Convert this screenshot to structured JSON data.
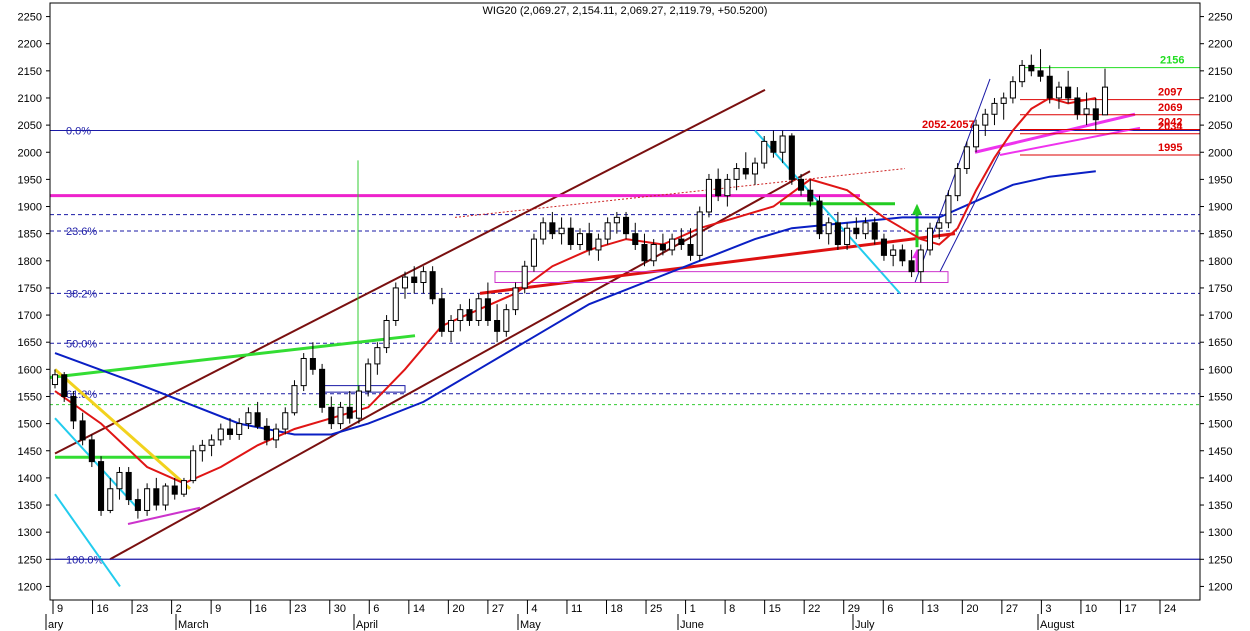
{
  "chart_data": {
    "type": "candlestick",
    "title": "WIG20 (2,069.27, 2,154.11, 2,069.27, 2,119.79, +50.5200)",
    "ylim": [
      1175,
      2275
    ],
    "yticks": [
      1200,
      1250,
      1300,
      1350,
      1400,
      1450,
      1500,
      1550,
      1600,
      1650,
      1700,
      1750,
      1800,
      1850,
      1900,
      1950,
      2000,
      2050,
      2100,
      2150,
      2200,
      2250
    ],
    "xticks": [
      "9",
      "16",
      "23",
      "2",
      "9",
      "16",
      "23",
      "30",
      "6",
      "14",
      "20",
      "27",
      "4",
      "11",
      "18",
      "25",
      "1",
      "8",
      "15",
      "22",
      "29",
      "6",
      "13",
      "20",
      "27",
      "3",
      "10",
      "17",
      "24"
    ],
    "month_labels": [
      "ary",
      "March",
      "April",
      "May",
      "June",
      "July",
      "August"
    ],
    "grid": false,
    "fib_levels": [
      {
        "label": "0.0%",
        "value": 2040
      },
      {
        "label": "23.6%",
        "value": 1855
      },
      {
        "label": "38.2%",
        "value": 1740
      },
      {
        "label": "50.0%",
        "value": 1648
      },
      {
        "label": "61.8%",
        "value": 1555
      },
      {
        "label": "100.0%",
        "value": 1250
      }
    ],
    "price_levels": [
      {
        "label": "2156",
        "value": 2156,
        "color": "#22dd22"
      },
      {
        "label": "2097",
        "value": 2097,
        "color": "#dd0000"
      },
      {
        "label": "2069",
        "value": 2069,
        "color": "#dd0000"
      },
      {
        "label": "2052-2057",
        "value": 2055,
        "color": "#dd0000"
      },
      {
        "label": "2042",
        "value": 2042,
        "color": "#dd0000"
      },
      {
        "label": "2034",
        "value": 2034,
        "color": "#dd0000"
      },
      {
        "label": "1995",
        "value": 1995,
        "color": "#dd0000"
      }
    ],
    "ohlc": [
      [
        1572,
        1600,
        1565,
        1590
      ],
      [
        1590,
        1595,
        1540,
        1550
      ],
      [
        1550,
        1560,
        1490,
        1505
      ],
      [
        1505,
        1520,
        1460,
        1470
      ],
      [
        1470,
        1480,
        1420,
        1430
      ],
      [
        1430,
        1440,
        1330,
        1340
      ],
      [
        1340,
        1400,
        1335,
        1380
      ],
      [
        1380,
        1420,
        1360,
        1410
      ],
      [
        1410,
        1420,
        1350,
        1360
      ],
      [
        1360,
        1380,
        1325,
        1340
      ],
      [
        1340,
        1390,
        1330,
        1380
      ],
      [
        1380,
        1400,
        1340,
        1350
      ],
      [
        1350,
        1390,
        1340,
        1385
      ],
      [
        1385,
        1400,
        1360,
        1370
      ],
      [
        1370,
        1400,
        1365,
        1395
      ],
      [
        1395,
        1460,
        1390,
        1450
      ],
      [
        1450,
        1470,
        1430,
        1460
      ],
      [
        1460,
        1480,
        1440,
        1470
      ],
      [
        1470,
        1500,
        1460,
        1490
      ],
      [
        1490,
        1510,
        1470,
        1480
      ],
      [
        1480,
        1510,
        1470,
        1500
      ],
      [
        1500,
        1530,
        1490,
        1520
      ],
      [
        1520,
        1540,
        1490,
        1495
      ],
      [
        1495,
        1510,
        1460,
        1470
      ],
      [
        1470,
        1500,
        1455,
        1490
      ],
      [
        1490,
        1530,
        1480,
        1520
      ],
      [
        1520,
        1580,
        1515,
        1570
      ],
      [
        1570,
        1630,
        1560,
        1620
      ],
      [
        1620,
        1650,
        1590,
        1600
      ],
      [
        1600,
        1610,
        1520,
        1530
      ],
      [
        1530,
        1550,
        1490,
        1500
      ],
      [
        1500,
        1540,
        1490,
        1530
      ],
      [
        1530,
        1560,
        1500,
        1510
      ],
      [
        1510,
        1570,
        1500,
        1560
      ],
      [
        1560,
        1620,
        1550,
        1610
      ],
      [
        1610,
        1650,
        1590,
        1640
      ],
      [
        1640,
        1700,
        1630,
        1690
      ],
      [
        1690,
        1760,
        1680,
        1750
      ],
      [
        1750,
        1780,
        1730,
        1770
      ],
      [
        1770,
        1790,
        1740,
        1760
      ],
      [
        1760,
        1790,
        1740,
        1780
      ],
      [
        1780,
        1790,
        1720,
        1730
      ],
      [
        1730,
        1750,
        1660,
        1670
      ],
      [
        1670,
        1700,
        1650,
        1690
      ],
      [
        1690,
        1720,
        1670,
        1710
      ],
      [
        1710,
        1730,
        1680,
        1690
      ],
      [
        1690,
        1740,
        1680,
        1730
      ],
      [
        1730,
        1760,
        1680,
        1690
      ],
      [
        1690,
        1720,
        1650,
        1670
      ],
      [
        1670,
        1720,
        1660,
        1710
      ],
      [
        1710,
        1760,
        1700,
        1750
      ],
      [
        1750,
        1800,
        1740,
        1790
      ],
      [
        1790,
        1850,
        1780,
        1840
      ],
      [
        1840,
        1880,
        1830,
        1870
      ],
      [
        1870,
        1890,
        1840,
        1850
      ],
      [
        1850,
        1880,
        1830,
        1860
      ],
      [
        1860,
        1880,
        1820,
        1830
      ],
      [
        1830,
        1860,
        1820,
        1850
      ],
      [
        1850,
        1870,
        1810,
        1820
      ],
      [
        1820,
        1850,
        1800,
        1840
      ],
      [
        1840,
        1880,
        1830,
        1870
      ],
      [
        1870,
        1890,
        1850,
        1880
      ],
      [
        1880,
        1890,
        1840,
        1850
      ],
      [
        1850,
        1870,
        1820,
        1830
      ],
      [
        1830,
        1850,
        1790,
        1800
      ],
      [
        1800,
        1840,
        1790,
        1830
      ],
      [
        1830,
        1850,
        1810,
        1820
      ],
      [
        1820,
        1850,
        1810,
        1840
      ],
      [
        1840,
        1860,
        1820,
        1830
      ],
      [
        1830,
        1860,
        1800,
        1810
      ],
      [
        1810,
        1900,
        1800,
        1890
      ],
      [
        1890,
        1960,
        1880,
        1950
      ],
      [
        1950,
        1970,
        1910,
        1920
      ],
      [
        1920,
        1960,
        1900,
        1950
      ],
      [
        1950,
        1980,
        1930,
        1970
      ],
      [
        1970,
        2000,
        1950,
        1960
      ],
      [
        1960,
        1990,
        1940,
        1980
      ],
      [
        1980,
        2030,
        1970,
        2020
      ],
      [
        2020,
        2040,
        1990,
        2000
      ],
      [
        2000,
        2040,
        1980,
        2030
      ],
      [
        2030,
        2035,
        1940,
        1950
      ],
      [
        1950,
        1960,
        1920,
        1930
      ],
      [
        1930,
        1950,
        1900,
        1910
      ],
      [
        1910,
        1920,
        1840,
        1850
      ],
      [
        1850,
        1880,
        1830,
        1870
      ],
      [
        1870,
        1890,
        1820,
        1830
      ],
      [
        1830,
        1870,
        1820,
        1860
      ],
      [
        1860,
        1880,
        1840,
        1850
      ],
      [
        1850,
        1880,
        1840,
        1870
      ],
      [
        1870,
        1880,
        1830,
        1840
      ],
      [
        1840,
        1850,
        1800,
        1810
      ],
      [
        1810,
        1830,
        1790,
        1820
      ],
      [
        1820,
        1830,
        1790,
        1800
      ],
      [
        1800,
        1820,
        1770,
        1780
      ],
      [
        1780,
        1830,
        1760,
        1820
      ],
      [
        1820,
        1870,
        1810,
        1860
      ],
      [
        1860,
        1880,
        1840,
        1870
      ],
      [
        1870,
        1930,
        1860,
        1920
      ],
      [
        1920,
        1980,
        1910,
        1970
      ],
      [
        1970,
        2020,
        1960,
        2010
      ],
      [
        2010,
        2060,
        2000,
        2050
      ],
      [
        2050,
        2080,
        2030,
        2070
      ],
      [
        2070,
        2100,
        2050,
        2090
      ],
      [
        2090,
        2110,
        2060,
        2100
      ],
      [
        2100,
        2140,
        2090,
        2130
      ],
      [
        2130,
        2170,
        2120,
        2160
      ],
      [
        2160,
        2180,
        2140,
        2150
      ],
      [
        2150,
        2190,
        2130,
        2140
      ],
      [
        2140,
        2160,
        2090,
        2100
      ],
      [
        2100,
        2130,
        2080,
        2120
      ],
      [
        2120,
        2150,
        2090,
        2100
      ],
      [
        2100,
        2120,
        2060,
        2070
      ],
      [
        2070,
        2110,
        2050,
        2080
      ],
      [
        2080,
        2100,
        2040,
        2060
      ],
      [
        2069,
        2154,
        2069,
        2120
      ]
    ],
    "ma_short": [
      [
        0,
        1560
      ],
      [
        5,
        1500
      ],
      [
        10,
        1420
      ],
      [
        14,
        1390
      ],
      [
        18,
        1420
      ],
      [
        22,
        1460
      ],
      [
        26,
        1490
      ],
      [
        30,
        1510
      ],
      [
        34,
        1530
      ],
      [
        38,
        1600
      ],
      [
        42,
        1680
      ],
      [
        46,
        1710
      ],
      [
        50,
        1740
      ],
      [
        54,
        1790
      ],
      [
        58,
        1820
      ],
      [
        62,
        1840
      ],
      [
        66,
        1830
      ],
      [
        70,
        1860
      ],
      [
        74,
        1880
      ],
      [
        78,
        1900
      ],
      [
        82,
        1950
      ],
      [
        86,
        1930
      ],
      [
        90,
        1880
      ],
      [
        94,
        1840
      ],
      [
        96,
        1830
      ],
      [
        98,
        1860
      ],
      [
        100,
        1930
      ],
      [
        102,
        1990
      ],
      [
        104,
        2040
      ],
      [
        106,
        2080
      ],
      [
        108,
        2100
      ],
      [
        110,
        2090
      ],
      [
        113,
        2100
      ]
    ],
    "ma_long": [
      [
        0,
        1630
      ],
      [
        8,
        1580
      ],
      [
        14,
        1540
      ],
      [
        20,
        1500
      ],
      [
        26,
        1480
      ],
      [
        30,
        1480
      ],
      [
        34,
        1500
      ],
      [
        40,
        1540
      ],
      [
        46,
        1600
      ],
      [
        52,
        1660
      ],
      [
        58,
        1720
      ],
      [
        64,
        1760
      ],
      [
        70,
        1800
      ],
      [
        76,
        1840
      ],
      [
        80,
        1860
      ],
      [
        86,
        1870
      ],
      [
        92,
        1880
      ],
      [
        96,
        1880
      ],
      [
        100,
        1910
      ],
      [
        104,
        1940
      ],
      [
        108,
        1955
      ],
      [
        113,
        1965
      ]
    ]
  }
}
